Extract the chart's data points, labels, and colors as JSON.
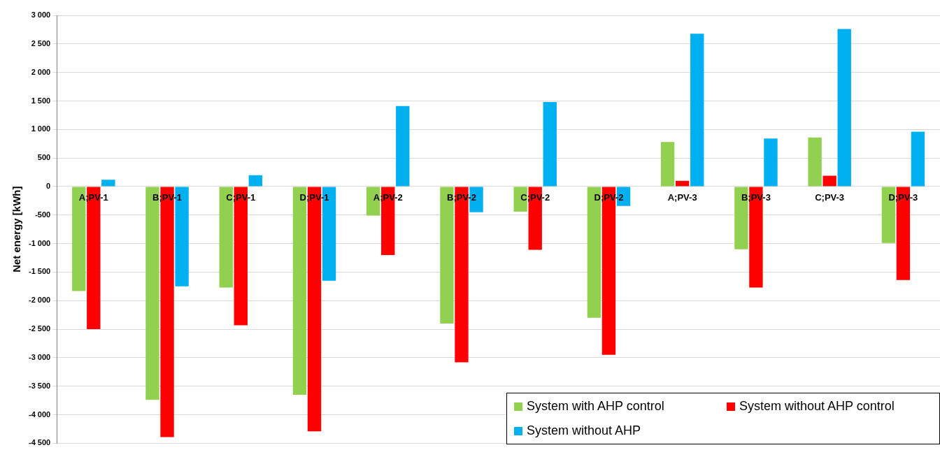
{
  "chart_data": {
    "type": "bar",
    "ylabel": "Net energy [kWh]",
    "categories": [
      "A;PV-1",
      "B;PV-1",
      "C;PV-1",
      "D;PV-1",
      "A;PV-2",
      "B;PV-2",
      "C;PV-2",
      "D;PV-2",
      "A;PV-3",
      "B;PV-3",
      "C;PV-3",
      "D;PV-3"
    ],
    "series": [
      {
        "name": "System with AHP control",
        "color": "#92d050",
        "values": [
          -1830,
          -3740,
          -1770,
          -3650,
          -510,
          -2400,
          -440,
          -2300,
          780,
          -1100,
          860,
          -990
        ]
      },
      {
        "name": "System without AHP control",
        "color": "#ff0000",
        "values": [
          -2500,
          -4390,
          -2430,
          -4290,
          -1200,
          -3080,
          -1110,
          -2950,
          100,
          -1770,
          190,
          -1640
        ]
      },
      {
        "name": "System without AHP",
        "color": "#00b0f0",
        "values": [
          120,
          -1750,
          200,
          -1650,
          1410,
          -450,
          1480,
          -340,
          2680,
          840,
          2760,
          960
        ]
      }
    ],
    "ylim": [
      -4500,
      3000
    ],
    "yticks": [
      {
        "value": -4500,
        "label": "-4 500"
      },
      {
        "value": -4000,
        "label": "-4 000"
      },
      {
        "value": -3500,
        "label": "-3 500"
      },
      {
        "value": -3000,
        "label": "-3 000"
      },
      {
        "value": -2500,
        "label": "-2 500"
      },
      {
        "value": -2000,
        "label": "-2 000"
      },
      {
        "value": -1500,
        "label": "-1 500"
      },
      {
        "value": -1000,
        "label": "-1 000"
      },
      {
        "value": -500,
        "label": "-500"
      },
      {
        "value": 0,
        "label": "0"
      },
      {
        "value": 500,
        "label": "500"
      },
      {
        "value": 1000,
        "label": "1 000"
      },
      {
        "value": 1500,
        "label": "1 500"
      },
      {
        "value": 2000,
        "label": "2 000"
      },
      {
        "value": 2500,
        "label": "2 500"
      },
      {
        "value": 3000,
        "label": "3 000"
      }
    ],
    "grid": "y",
    "legend": "bottom right"
  }
}
